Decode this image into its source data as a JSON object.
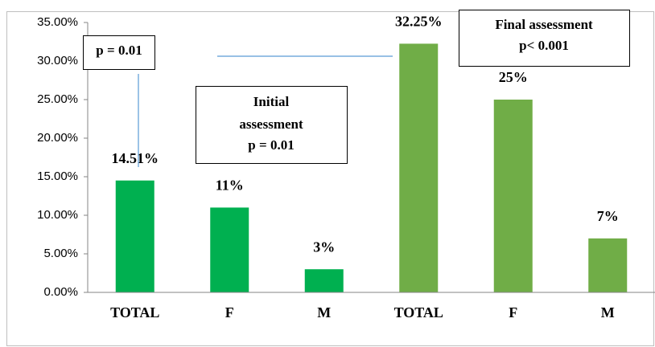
{
  "chart_data": {
    "type": "bar",
    "categories": [
      "TOTAL",
      "F",
      "M",
      "TOTAL",
      "F",
      "M"
    ],
    "values": [
      14.51,
      11,
      3,
      32.25,
      25,
      7
    ],
    "value_labels": [
      "14.51%",
      "11%",
      "3%",
      "32.25%",
      "25%",
      "7%"
    ],
    "colors": [
      "#00b050",
      "#00b050",
      "#00b050",
      "#70ad47",
      "#70ad47",
      "#70ad47"
    ],
    "ylim": [
      0,
      35
    ],
    "yticks": [
      {
        "value": 0,
        "label": "0.00%"
      },
      {
        "value": 5,
        "label": "5.00%"
      },
      {
        "value": 10,
        "label": "10.00%"
      },
      {
        "value": 15,
        "label": "15.00%"
      },
      {
        "value": 20,
        "label": "20.00%"
      },
      {
        "value": 25,
        "label": "25.00%"
      },
      {
        "value": 30,
        "label": "30.00%"
      },
      {
        "value": 35,
        "label": "35.00%"
      }
    ],
    "grid": false,
    "annotations": [
      [
        "p = 0.01"
      ],
      [
        "Initial",
        "assessment",
        "p = 0.01"
      ],
      [
        "Final assessment",
        "p< 0.001"
      ]
    ]
  }
}
